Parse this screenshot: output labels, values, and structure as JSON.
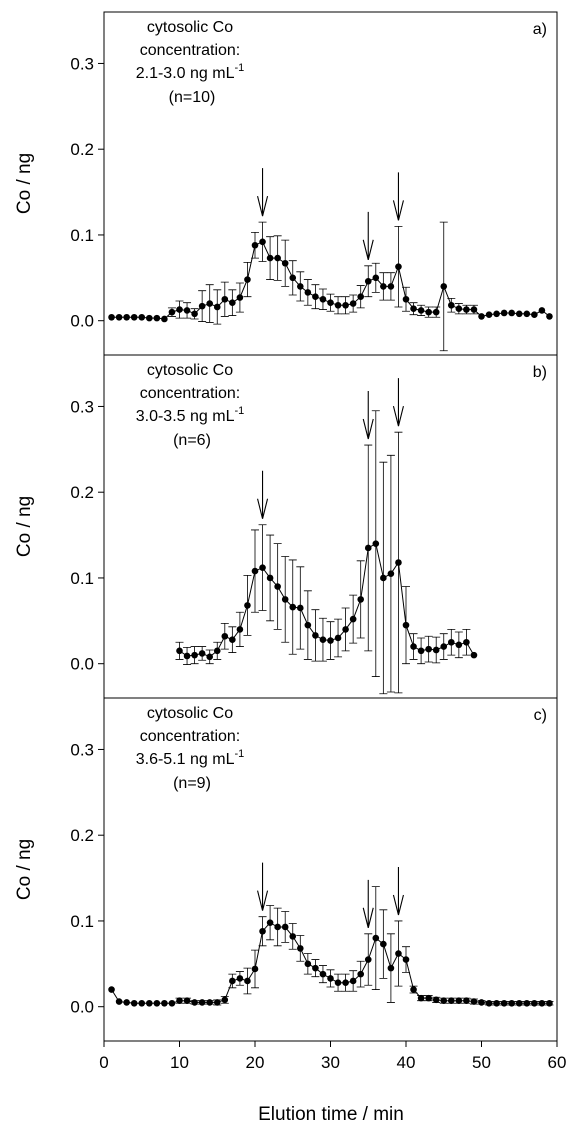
{
  "xlabel": "Elution time / min",
  "chart_data": [
    {
      "type": "scatter",
      "panel": "a)",
      "ylabel": "Co / ng",
      "annotation": [
        "cytosolic Co",
        "concentration:",
        "2.1-3.0 ng mL",
        "-1",
        "(n=10)"
      ],
      "xlim": [
        0,
        60
      ],
      "ylim": [
        -0.04,
        0.36
      ],
      "yticks": [
        0.0,
        0.1,
        0.2,
        0.3
      ],
      "ytick_labels": [
        "0.0",
        "0.1",
        "0.2",
        "0.3"
      ],
      "arrows_x": [
        21,
        35,
        39
      ],
      "x": [
        1,
        2,
        3,
        4,
        5,
        6,
        7,
        8,
        9,
        10,
        11,
        12,
        13,
        14,
        15,
        16,
        17,
        18,
        19,
        20,
        21,
        22,
        23,
        24,
        25,
        26,
        27,
        28,
        29,
        30,
        31,
        32,
        33,
        34,
        35,
        36,
        37,
        38,
        39,
        40,
        41,
        42,
        43,
        44,
        45,
        46,
        47,
        48,
        49,
        50,
        51,
        52,
        53,
        54,
        55,
        56,
        57,
        58,
        59
      ],
      "y": [
        0.004,
        0.004,
        0.004,
        0.004,
        0.004,
        0.003,
        0.003,
        0.002,
        0.01,
        0.013,
        0.012,
        0.008,
        0.017,
        0.02,
        0.016,
        0.025,
        0.021,
        0.027,
        0.048,
        0.088,
        0.092,
        0.073,
        0.073,
        0.067,
        0.05,
        0.04,
        0.033,
        0.028,
        0.025,
        0.021,
        0.018,
        0.018,
        0.02,
        0.028,
        0.046,
        0.05,
        0.04,
        0.04,
        0.063,
        0.025,
        0.014,
        0.012,
        0.01,
        0.01,
        0.04,
        0.018,
        0.014,
        0.013,
        0.013,
        0.005,
        0.007,
        0.008,
        0.009,
        0.009,
        0.008,
        0.008,
        0.007,
        0.012,
        0.005
      ],
      "err": [
        0,
        0,
        0,
        0,
        0,
        0,
        0,
        0,
        0.005,
        0.01,
        0.009,
        0.006,
        0.018,
        0.022,
        0.02,
        0.02,
        0.015,
        0.017,
        0.02,
        0.015,
        0.023,
        0.025,
        0.026,
        0.027,
        0.02,
        0.017,
        0.015,
        0.014,
        0.012,
        0.01,
        0.01,
        0.01,
        0.01,
        0.013,
        0.018,
        0.017,
        0.016,
        0.016,
        0.047,
        0.014,
        0.007,
        0.006,
        0.006,
        0.006,
        0.075,
        0.008,
        0.006,
        0.005,
        0.005,
        0,
        0,
        0,
        0,
        0,
        0,
        0,
        0,
        0,
        0
      ]
    },
    {
      "type": "scatter",
      "panel": "b)",
      "ylabel": "Co / ng",
      "annotation": [
        "cytosolic Co",
        "concentration:",
        "3.0-3.5 ng mL",
        "-1",
        "(n=6)"
      ],
      "xlim": [
        0,
        60
      ],
      "ylim": [
        -0.04,
        0.36
      ],
      "yticks": [
        0.0,
        0.1,
        0.2,
        0.3
      ],
      "ytick_labels": [
        "0.0",
        "0.1",
        "0.2",
        "0.3"
      ],
      "arrows_x": [
        21,
        35,
        39
      ],
      "x": [
        10,
        11,
        12,
        13,
        14,
        15,
        16,
        17,
        18,
        19,
        20,
        21,
        22,
        23,
        24,
        25,
        26,
        27,
        28,
        29,
        30,
        31,
        32,
        33,
        34,
        35,
        36,
        37,
        38,
        39,
        40,
        41,
        42,
        43,
        44,
        45,
        46,
        47,
        48,
        49
      ],
      "y": [
        0.015,
        0.009,
        0.01,
        0.012,
        0.008,
        0.015,
        0.032,
        0.028,
        0.04,
        0.068,
        0.108,
        0.112,
        0.1,
        0.09,
        0.075,
        0.066,
        0.065,
        0.045,
        0.033,
        0.028,
        0.027,
        0.03,
        0.04,
        0.052,
        0.075,
        0.135,
        0.14,
        0.1,
        0.105,
        0.118,
        0.045,
        0.02,
        0.015,
        0.017,
        0.016,
        0.02,
        0.025,
        0.022,
        0.025,
        0.01
      ],
      "err": [
        0.01,
        0.01,
        0.01,
        0.008,
        0.008,
        0.01,
        0.015,
        0.015,
        0.02,
        0.035,
        0.048,
        0.05,
        0.05,
        0.05,
        0.05,
        0.055,
        0.048,
        0.04,
        0.03,
        0.025,
        0.022,
        0.022,
        0.025,
        0.028,
        0.045,
        0.12,
        0.155,
        0.135,
        0.138,
        0.152,
        0.045,
        0.015,
        0.015,
        0.015,
        0.015,
        0.015,
        0.015,
        0.015,
        0.015,
        0
      ]
    },
    {
      "type": "scatter",
      "panel": "c)",
      "ylabel": "Co / ng",
      "annotation": [
        "cytosolic Co",
        "concentration:",
        "3.6-5.1 ng mL",
        "-1",
        "(n=9)"
      ],
      "xlim": [
        0,
        60
      ],
      "ylim": [
        -0.04,
        0.36
      ],
      "yticks": [
        0.0,
        0.1,
        0.2,
        0.3
      ],
      "ytick_labels": [
        "0.0",
        "0.1",
        "0.2",
        "0.3"
      ],
      "xticks": [
        0,
        10,
        20,
        30,
        40,
        50,
        60
      ],
      "xtick_labels": [
        "0",
        "10",
        "20",
        "30",
        "40",
        "50",
        "60"
      ],
      "arrows_x": [
        21,
        35,
        39
      ],
      "x": [
        1,
        2,
        3,
        4,
        5,
        6,
        7,
        8,
        9,
        10,
        11,
        12,
        13,
        14,
        15,
        16,
        17,
        18,
        19,
        20,
        21,
        22,
        23,
        24,
        25,
        26,
        27,
        28,
        29,
        30,
        31,
        32,
        33,
        34,
        35,
        36,
        37,
        38,
        39,
        40,
        41,
        42,
        43,
        44,
        45,
        46,
        47,
        48,
        49,
        50,
        51,
        52,
        53,
        54,
        55,
        56,
        57,
        58,
        59
      ],
      "y": [
        0.02,
        0.006,
        0.005,
        0.004,
        0.004,
        0.004,
        0.004,
        0.004,
        0.004,
        0.007,
        0.007,
        0.005,
        0.005,
        0.005,
        0.005,
        0.008,
        0.03,
        0.033,
        0.03,
        0.044,
        0.088,
        0.098,
        0.093,
        0.093,
        0.082,
        0.068,
        0.05,
        0.045,
        0.038,
        0.033,
        0.028,
        0.028,
        0.03,
        0.038,
        0.055,
        0.08,
        0.073,
        0.045,
        0.062,
        0.055,
        0.02,
        0.01,
        0.01,
        0.008,
        0.007,
        0.007,
        0.007,
        0.007,
        0.006,
        0.005,
        0.004,
        0.004,
        0.004,
        0.004,
        0.004,
        0.004,
        0.004,
        0.004,
        0.004
      ],
      "err": [
        0,
        0,
        0,
        0,
        0,
        0,
        0,
        0,
        0,
        0.003,
        0.003,
        0.002,
        0.002,
        0.002,
        0.003,
        0.004,
        0.008,
        0.008,
        0.015,
        0.022,
        0.017,
        0.02,
        0.022,
        0.018,
        0.015,
        0.015,
        0.012,
        0.01,
        0.01,
        0.01,
        0.01,
        0.01,
        0.012,
        0.015,
        0.03,
        0.06,
        0.04,
        0.04,
        0.038,
        0.015,
        0.004,
        0.003,
        0.003,
        0.003,
        0.003,
        0.003,
        0.003,
        0.003,
        0.003,
        0.002,
        0.002,
        0.002,
        0.002,
        0.002,
        0.002,
        0.002,
        0.002,
        0.002,
        0.002
      ]
    }
  ]
}
